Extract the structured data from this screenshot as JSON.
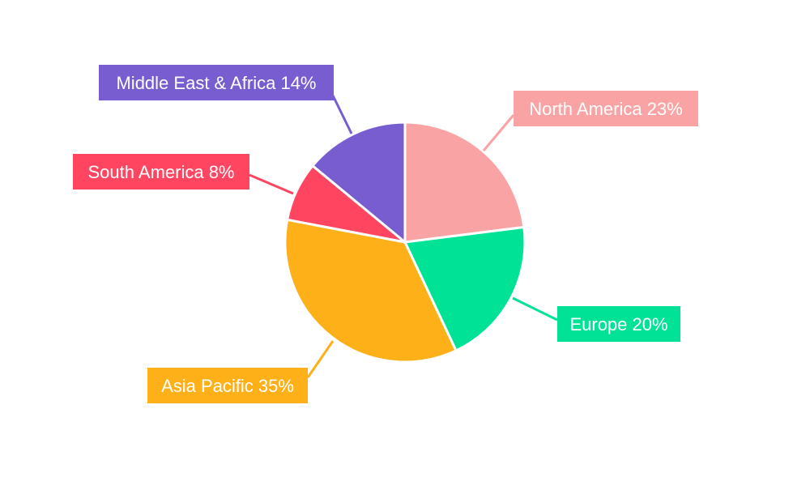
{
  "chart_data": {
    "type": "pie",
    "start_angle": "12 o'clock, clockwise",
    "slices": [
      {
        "label": "North America",
        "value": 23,
        "display": "North America 23%",
        "color": "#f9a3a4"
      },
      {
        "label": "Europe",
        "value": 20,
        "display": "Europe 20%",
        "color": "#00e396"
      },
      {
        "label": "Asia Pacific",
        "value": 35,
        "display": "Asia Pacific 35%",
        "color": "#feb019"
      },
      {
        "label": "South America",
        "value": 8,
        "display": "South America 8%",
        "color": "#ff4560"
      },
      {
        "label": "Middle East & Africa",
        "value": 14,
        "display": "Middle East & Africa 14%",
        "color": "#775dd0"
      }
    ],
    "label_text_color": "#ffffff",
    "legend": "none"
  }
}
